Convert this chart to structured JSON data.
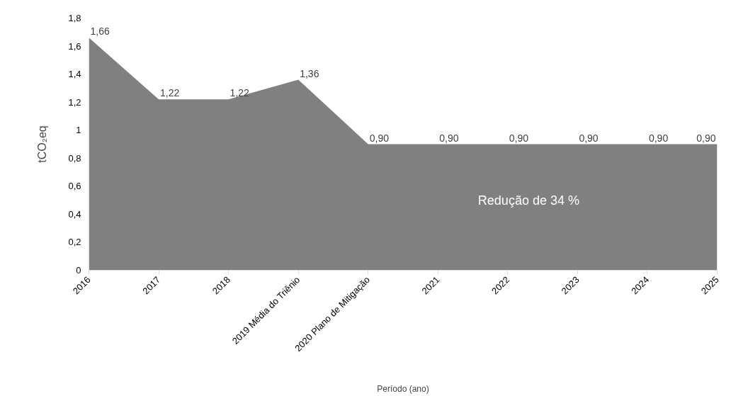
{
  "chart_data": {
    "type": "area",
    "categories": [
      "2016",
      "2017",
      "2018",
      "2019 Média do Triênio",
      "2020 Plano de Mitigação",
      "2021",
      "2022",
      "2023",
      "2024",
      "2025"
    ],
    "series": [
      {
        "color": "#808080",
        "values": [
          1.66,
          1.22,
          1.22,
          1.36,
          0.9,
          0.9,
          0.9,
          0.9,
          0.9,
          0.9
        ],
        "value_labels": [
          "1,66",
          "1,22",
          "1,22",
          "1,36",
          "0,90",
          "0,90",
          "0,90",
          "0,90",
          "0,90",
          "0,90"
        ]
      }
    ],
    "ylim": [
      0,
      1.8
    ],
    "yticks": [
      0,
      {
        "value": 0.2,
        "label": "0,2"
      },
      {
        "value": 0.4,
        "label": "0,4"
      },
      {
        "value": 0.6,
        "label": "0,6"
      },
      {
        "value": 0.8,
        "label": "0,8"
      },
      1,
      {
        "value": 1.2,
        "label": "1,2"
      },
      {
        "value": 1.4,
        "label": "1,4"
      },
      {
        "value": 1.6,
        "label": "1,6"
      },
      {
        "value": 1.8,
        "label": "1,8"
      }
    ],
    "xlabel": "Período (ano)",
    "ylabel": "tCO₂eq",
    "annotations": [
      "Redução de 34 %"
    ],
    "grid": false
  }
}
